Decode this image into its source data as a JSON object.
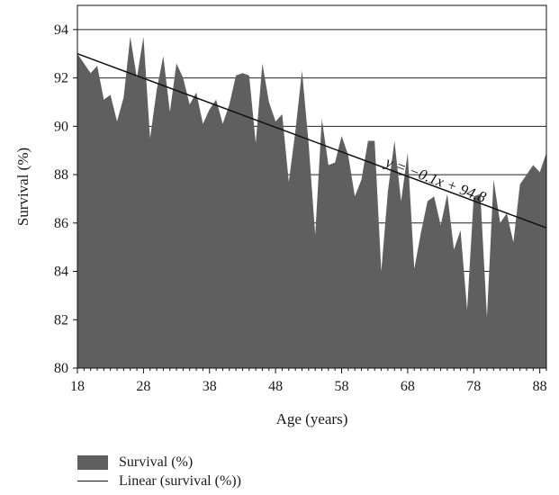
{
  "chart_data": {
    "type": "area",
    "xlabel": "Age (years)",
    "ylabel": "Survival (%)",
    "xlim": [
      18,
      89
    ],
    "ylim": [
      80,
      95
    ],
    "xticks": [
      18,
      28,
      38,
      48,
      58,
      68,
      78,
      88
    ],
    "yticks": [
      80,
      82,
      84,
      86,
      88,
      90,
      92,
      94
    ],
    "grid": "horizontal",
    "legend_position": "bottom-left",
    "colors": {
      "area": "#5f5f5f",
      "trendline": "#111111",
      "grid": "#222222"
    },
    "series": [
      {
        "name": "Survival (%)",
        "type": "area",
        "x": [
          18,
          19,
          20,
          21,
          22,
          23,
          24,
          25,
          26,
          27,
          28,
          29,
          30,
          31,
          32,
          33,
          34,
          35,
          36,
          37,
          38,
          39,
          40,
          41,
          42,
          43,
          44,
          45,
          46,
          47,
          48,
          49,
          50,
          51,
          52,
          53,
          54,
          55,
          56,
          57,
          58,
          59,
          60,
          61,
          62,
          63,
          64,
          65,
          66,
          67,
          68,
          69,
          70,
          71,
          72,
          73,
          74,
          75,
          76,
          77,
          78,
          79,
          80,
          81,
          82,
          83,
          84,
          85,
          86,
          87,
          88,
          89
        ],
        "values": [
          93.0,
          92.6,
          92.2,
          92.5,
          91.1,
          91.3,
          90.2,
          91.2,
          93.7,
          92.0,
          93.7,
          89.5,
          91.5,
          92.9,
          90.6,
          92.6,
          92.0,
          90.9,
          91.4,
          90.1,
          90.7,
          91.1,
          90.1,
          90.9,
          92.1,
          92.2,
          92.1,
          89.3,
          92.6,
          91.0,
          90.2,
          90.5,
          87.7,
          89.8,
          92.3,
          89.3,
          85.5,
          90.3,
          88.4,
          88.5,
          89.6,
          88.8,
          87.1,
          87.8,
          89.4,
          89.4,
          84.0,
          87.3,
          89.4,
          86.9,
          88.9,
          84.1,
          85.6,
          86.9,
          87.1,
          85.9,
          87.2,
          84.9,
          85.7,
          82.4,
          87.1,
          87.2,
          82.1,
          87.8,
          86.0,
          86.4,
          85.2,
          87.6,
          88.0,
          88.4,
          88.1,
          88.9
        ]
      },
      {
        "name": "Linear (survival (%))",
        "type": "line",
        "slope": -0.1,
        "intercept": 94.8,
        "x": [
          18,
          89
        ],
        "values": [
          93.0,
          85.8
        ]
      }
    ],
    "annotations": [
      {
        "text": "y = −0.1x + 94.8",
        "x": 72,
        "y": 87.6
      }
    ]
  }
}
